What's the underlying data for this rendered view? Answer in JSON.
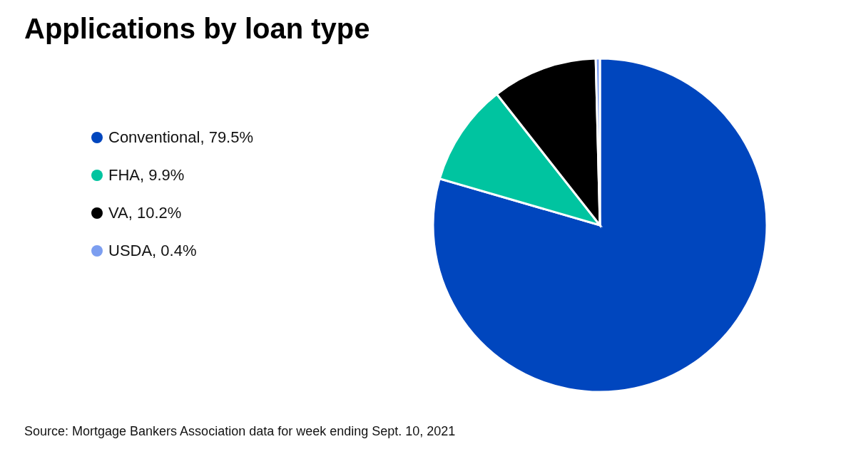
{
  "chart_data": {
    "type": "pie",
    "title": "Applications by loan type",
    "categories": [
      "Conventional, 79.5%",
      "FHA, 9.9%",
      "VA, 10.2%",
      "USDA, 0.4%"
    ],
    "values": [
      79.5,
      9.9,
      10.2,
      0.4
    ],
    "colors": [
      "#0046be",
      "#00c4a0",
      "#000000",
      "#7c9ef0"
    ],
    "legend": "left",
    "annotations": [
      "Source: Mortgage Bankers Association data for week ending Sept. 10, 2021"
    ]
  }
}
